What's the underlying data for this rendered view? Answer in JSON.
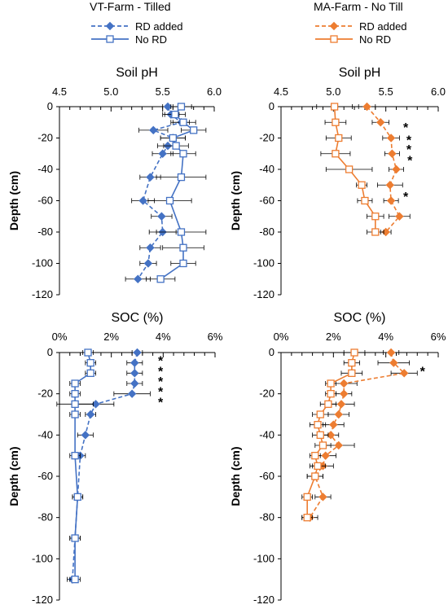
{
  "legend_groups": [
    {
      "title": "VT-Farm - Tilled",
      "color": "#4472c4",
      "items": [
        "RD added",
        "No RD"
      ]
    },
    {
      "title": "MA-Farm - No Till",
      "color": "#ed7d31",
      "items": [
        "RD added",
        "No RD"
      ]
    }
  ],
  "chart_data": [
    {
      "type": "line",
      "title": "Soil pH",
      "xlabel": "",
      "ylabel": "Depth (cm)",
      "xlim": [
        4.5,
        6.0
      ],
      "xticks": [
        4.5,
        5.0,
        5.5,
        6.0
      ],
      "xtick_labels": [
        "4.5",
        "5.0",
        "5.5",
        "6.0"
      ],
      "ylim": [
        -120,
        0
      ],
      "yticks": [
        0,
        -20,
        -40,
        -60,
        -80,
        -100,
        -120
      ],
      "legend": "top",
      "grid": false,
      "color": "#4472c4",
      "series": [
        {
          "name": "RD added",
          "line": "dashed",
          "marker": "diamond",
          "y": [
            0,
            -5,
            -10,
            -15,
            -20,
            -25,
            -30,
            -45,
            -60,
            -70,
            -80,
            -90,
            -100,
            -110
          ],
          "x": [
            5.55,
            5.58,
            5.68,
            5.41,
            5.6,
            5.55,
            5.5,
            5.38,
            5.31,
            5.49,
            5.5,
            5.38,
            5.36,
            5.26
          ],
          "err": [
            0.05,
            0.08,
            0.08,
            0.14,
            0.12,
            0.1,
            0.1,
            0.1,
            0.11,
            0.1,
            0.13,
            0.1,
            0.08,
            0.12
          ]
        },
        {
          "name": "No RD",
          "line": "solid",
          "marker": "square",
          "y": [
            0,
            -5,
            -10,
            -15,
            -20,
            -25,
            -30,
            -45,
            -60,
            -80,
            -90,
            -100,
            -110
          ],
          "x": [
            5.68,
            5.62,
            5.7,
            5.8,
            5.6,
            5.63,
            5.7,
            5.68,
            5.57,
            5.68,
            5.7,
            5.7,
            5.48
          ],
          "err": [
            0.1,
            0.1,
            0.12,
            0.12,
            0.12,
            0.12,
            0.12,
            0.24,
            0.21,
            0.24,
            0.2,
            0.12,
            0.14
          ]
        }
      ],
      "annotations": []
    },
    {
      "type": "line",
      "title": "Soil pH",
      "xlabel": "",
      "ylabel": "Depth (cm)",
      "xlim": [
        4.5,
        6.0
      ],
      "xticks": [
        4.5,
        5.0,
        5.5,
        6.0
      ],
      "xtick_labels": [
        "4.5",
        "5.0",
        "5.5",
        "6.0"
      ],
      "ylim": [
        -120,
        0
      ],
      "yticks": [
        0,
        -20,
        -40,
        -60,
        -80,
        -100,
        -120
      ],
      "legend": "top",
      "grid": false,
      "color": "#ed7d31",
      "series": [
        {
          "name": "RD added",
          "line": "dashed",
          "marker": "diamond",
          "y": [
            0,
            -10,
            -20,
            -30,
            -40,
            -50,
            -60,
            -70,
            -80
          ],
          "x": [
            5.32,
            5.45,
            5.55,
            5.56,
            5.6,
            5.54,
            5.55,
            5.63,
            5.5
          ],
          "err": [
            0.08,
            0.08,
            0.08,
            0.07,
            0.07,
            0.12,
            0.07,
            0.1,
            0.05
          ]
        },
        {
          "name": "No RD",
          "line": "solid",
          "marker": "square",
          "y": [
            0,
            -10,
            -20,
            -30,
            -40,
            -50,
            -60,
            -70,
            -80
          ],
          "x": [
            5.01,
            5.02,
            5.05,
            5.02,
            5.15,
            5.27,
            5.3,
            5.4,
            5.4
          ],
          "err": [
            0.17,
            0.1,
            0.12,
            0.14,
            0.22,
            0.05,
            0.07,
            0.08,
            0.08
          ]
        }
      ],
      "annotations": [
        {
          "text": "*",
          "x": 5.69,
          "y": -12
        },
        {
          "text": "*",
          "x": 5.72,
          "y": -20
        },
        {
          "text": "*",
          "x": 5.72,
          "y": -26
        },
        {
          "text": "*",
          "x": 5.73,
          "y": -33
        },
        {
          "text": "*",
          "x": 5.69,
          "y": -56
        }
      ]
    },
    {
      "type": "line",
      "title": "SOC (%)",
      "xlabel": "",
      "ylabel": "Depth (cm)",
      "xlim": [
        0,
        6
      ],
      "xticks": [
        0,
        2,
        4,
        6
      ],
      "xtick_labels": [
        "0%",
        "2%",
        "4%",
        "6%"
      ],
      "ylim": [
        -120,
        0
      ],
      "yticks": [
        0,
        -20,
        -40,
        -60,
        -80,
        -100,
        -120
      ],
      "legend": "top",
      "grid": false,
      "color": "#4472c4",
      "series": [
        {
          "name": "RD added",
          "line": "dashed",
          "marker": "diamond",
          "y": [
            0,
            -5,
            -10,
            -15,
            -20,
            -25,
            -30,
            -40,
            -50,
            -70,
            -90,
            -110
          ],
          "x": [
            3.0,
            2.9,
            2.9,
            2.9,
            2.8,
            1.4,
            1.2,
            1.0,
            0.8,
            0.7,
            0.6,
            0.5
          ],
          "err": [
            0.2,
            0.3,
            0.3,
            0.3,
            0.7,
            0.7,
            0.2,
            0.3,
            0.2,
            0.2,
            0.2,
            0.2
          ]
        },
        {
          "name": "No RD",
          "line": "solid",
          "marker": "square",
          "y": [
            0,
            -5,
            -10,
            -15,
            -20,
            -25,
            -30,
            -50,
            -70,
            -90,
            -110
          ],
          "x": [
            1.1,
            1.2,
            1.2,
            0.6,
            0.6,
            0.6,
            0.6,
            0.6,
            0.7,
            0.6,
            0.6
          ],
          "err": [
            0.2,
            0.2,
            0.2,
            0.2,
            0.2,
            0.7,
            0.2,
            0.2,
            0.2,
            0.2,
            0.2
          ]
        }
      ],
      "annotations": [
        {
          "text": "*",
          "x": 3.9,
          "y": -3
        },
        {
          "text": "*",
          "x": 3.9,
          "y": -8
        },
        {
          "text": "*",
          "x": 3.9,
          "y": -13
        },
        {
          "text": "*",
          "x": 3.9,
          "y": -18
        },
        {
          "text": "*",
          "x": 3.9,
          "y": -23
        }
      ]
    },
    {
      "type": "line",
      "title": "SOC (%)",
      "xlabel": "",
      "ylabel": "Depth (cm)",
      "xlim": [
        0,
        6
      ],
      "xticks": [
        0,
        2,
        4,
        6
      ],
      "xtick_labels": [
        "0%",
        "2%",
        "4%",
        "6%"
      ],
      "ylim": [
        -120,
        0
      ],
      "yticks": [
        0,
        -20,
        -40,
        -60,
        -80,
        -100,
        -120
      ],
      "legend": "top",
      "grid": false,
      "color": "#ed7d31",
      "series": [
        {
          "name": "RD added",
          "line": "dashed",
          "marker": "diamond",
          "y": [
            0,
            -5,
            -10,
            -15,
            -20,
            -25,
            -30,
            -35,
            -40,
            -45,
            -50,
            -55,
            -60,
            -70,
            -80
          ],
          "x": [
            4.2,
            4.3,
            4.7,
            2.4,
            2.4,
            2.3,
            2.2,
            2.0,
            1.9,
            2.2,
            1.7,
            1.6,
            1.3,
            1.6,
            1.1
          ],
          "err": [
            0.3,
            0.6,
            0.5,
            0.5,
            0.3,
            0.5,
            0.4,
            0.4,
            0.3,
            0.6,
            0.4,
            0.4,
            0.3,
            0.3,
            0.3
          ]
        },
        {
          "name": "No RD",
          "line": "solid",
          "marker": "square",
          "y": [
            0,
            -5,
            -10,
            -15,
            -20,
            -25,
            -30,
            -35,
            -40,
            -45,
            -50,
            -55,
            -60,
            -70,
            -80
          ],
          "x": [
            2.8,
            2.7,
            2.7,
            1.9,
            1.9,
            1.8,
            1.5,
            1.4,
            1.5,
            1.6,
            1.3,
            1.4,
            1.3,
            1.0,
            1.0
          ],
          "err": [
            0.4,
            0.3,
            0.4,
            0.2,
            0.2,
            0.3,
            0.3,
            0.3,
            0.3,
            0.3,
            0.2,
            0.3,
            0.3,
            0.2,
            0.2
          ]
        }
      ],
      "annotations": [
        {
          "text": "*",
          "x": 5.4,
          "y": -8
        }
      ]
    }
  ]
}
